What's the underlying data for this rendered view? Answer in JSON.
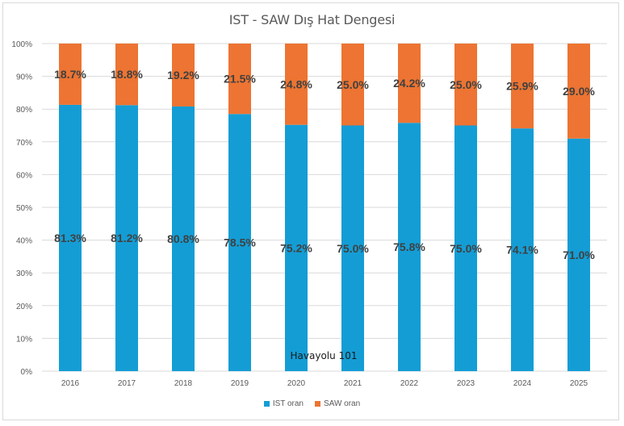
{
  "chart_data": {
    "type": "bar",
    "stacked": true,
    "percent_stacked": true,
    "title": "IST - SAW Dış Hat Dengesi",
    "xlabel": "",
    "ylabel": "",
    "ylim": [
      0,
      100
    ],
    "y_ticks": [
      "0%",
      "10%",
      "20%",
      "30%",
      "40%",
      "50%",
      "60%",
      "70%",
      "80%",
      "90%",
      "100%"
    ],
    "grid": true,
    "legend_position": "bottom",
    "categories": [
      "2016",
      "2017",
      "2018",
      "2019",
      "2020",
      "2021",
      "2022",
      "2023",
      "2024",
      "2025"
    ],
    "series": [
      {
        "name": "IST oran",
        "color": "#149dd5",
        "values": [
          81.3,
          81.2,
          80.8,
          78.5,
          75.2,
          75.0,
          75.8,
          75.0,
          74.1,
          71.0
        ],
        "labels": [
          "81.3%",
          "81.2%",
          "80.8%",
          "78.5%",
          "75.2%",
          "75.0%",
          "75.8%",
          "75.0%",
          "74.1%",
          "71.0%"
        ]
      },
      {
        "name": "SAW oran",
        "color": "#ed7432",
        "values": [
          18.7,
          18.8,
          19.2,
          21.5,
          24.8,
          25.0,
          24.2,
          25.0,
          25.9,
          29.0
        ],
        "labels": [
          "18.7%",
          "18.8%",
          "19.2%",
          "21.5%",
          "24.8%",
          "25.0%",
          "24.2%",
          "25.0%",
          "25.9%",
          "29.0%"
        ]
      }
    ],
    "annotations": [
      "Havayolu 101"
    ]
  },
  "watermark": "Havayolu 101"
}
